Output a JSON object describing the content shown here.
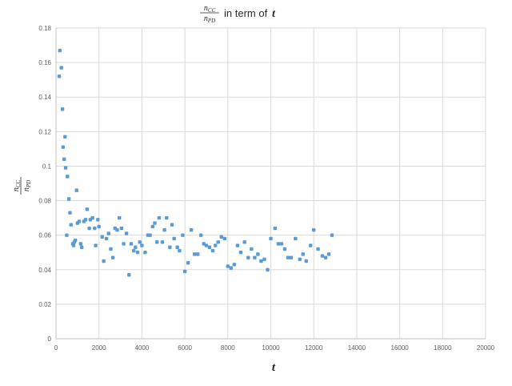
{
  "chart_data": {
    "type": "scatter",
    "title": {
      "frac_num": "n_CC",
      "frac_den": "n_PD",
      "text": "in term of",
      "var": "t"
    },
    "xlabel": "t",
    "ylabel": {
      "frac_num": "n_CC",
      "frac_den": "n_PD"
    },
    "xlim": [
      0,
      20000
    ],
    "ylim": [
      0,
      0.18
    ],
    "xticks": [
      "0",
      "2000",
      "4000",
      "6000",
      "8000",
      "10000",
      "12000",
      "14000",
      "16000",
      "18000",
      "20000"
    ],
    "yticks": [
      "0",
      "0.02",
      "0.04",
      "0.06",
      "0.08",
      "0.1",
      "0.12",
      "0.14",
      "0.16",
      "0.18"
    ],
    "grid": true,
    "marker_color": "#5b9bd5",
    "points": [
      [
        150,
        0.152
      ],
      [
        180,
        0.167
      ],
      [
        250,
        0.157
      ],
      [
        300,
        0.133
      ],
      [
        330,
        0.111
      ],
      [
        380,
        0.104
      ],
      [
        420,
        0.117
      ],
      [
        450,
        0.099
      ],
      [
        500,
        0.06
      ],
      [
        530,
        0.094
      ],
      [
        600,
        0.081
      ],
      [
        650,
        0.073
      ],
      [
        700,
        0.066
      ],
      [
        780,
        0.055
      ],
      [
        820,
        0.054
      ],
      [
        850,
        0.056
      ],
      [
        900,
        0.057
      ],
      [
        960,
        0.086
      ],
      [
        1000,
        0.067
      ],
      [
        1080,
        0.068
      ],
      [
        1150,
        0.055
      ],
      [
        1200,
        0.053
      ],
      [
        1300,
        0.068
      ],
      [
        1380,
        0.069
      ],
      [
        1450,
        0.075
      ],
      [
        1550,
        0.064
      ],
      [
        1600,
        0.069
      ],
      [
        1700,
        0.07
      ],
      [
        1800,
        0.064
      ],
      [
        1850,
        0.054
      ],
      [
        1950,
        0.069
      ],
      [
        2000,
        0.065
      ],
      [
        2150,
        0.059
      ],
      [
        2220,
        0.045
      ],
      [
        2350,
        0.058
      ],
      [
        2450,
        0.061
      ],
      [
        2550,
        0.052
      ],
      [
        2650,
        0.047
      ],
      [
        2750,
        0.064
      ],
      [
        2850,
        0.063
      ],
      [
        2950,
        0.07
      ],
      [
        3050,
        0.064
      ],
      [
        3150,
        0.055
      ],
      [
        3280,
        0.061
      ],
      [
        3400,
        0.037
      ],
      [
        3500,
        0.055
      ],
      [
        3620,
        0.051
      ],
      [
        3700,
        0.053
      ],
      [
        3800,
        0.05
      ],
      [
        3900,
        0.056
      ],
      [
        4000,
        0.054
      ],
      [
        4150,
        0.05
      ],
      [
        4280,
        0.06
      ],
      [
        4380,
        0.06
      ],
      [
        4500,
        0.065
      ],
      [
        4600,
        0.067
      ],
      [
        4700,
        0.056
      ],
      [
        4800,
        0.07
      ],
      [
        4950,
        0.056
      ],
      [
        5050,
        0.063
      ],
      [
        5150,
        0.07
      ],
      [
        5300,
        0.053
      ],
      [
        5400,
        0.066
      ],
      [
        5500,
        0.058
      ],
      [
        5650,
        0.053
      ],
      [
        5750,
        0.051
      ],
      [
        5900,
        0.06
      ],
      [
        6000,
        0.039
      ],
      [
        6150,
        0.044
      ],
      [
        6300,
        0.063
      ],
      [
        6450,
        0.049
      ],
      [
        6600,
        0.049
      ],
      [
        6750,
        0.06
      ],
      [
        6880,
        0.055
      ],
      [
        7000,
        0.054
      ],
      [
        7150,
        0.053
      ],
      [
        7300,
        0.051
      ],
      [
        7420,
        0.054
      ],
      [
        7550,
        0.056
      ],
      [
        7700,
        0.059
      ],
      [
        7850,
        0.058
      ],
      [
        8000,
        0.042
      ],
      [
        8150,
        0.041
      ],
      [
        8300,
        0.043
      ],
      [
        8450,
        0.054
      ],
      [
        8600,
        0.05
      ],
      [
        8780,
        0.056
      ],
      [
        8950,
        0.047
      ],
      [
        9100,
        0.052
      ],
      [
        9250,
        0.047
      ],
      [
        9400,
        0.049
      ],
      [
        9550,
        0.045
      ],
      [
        9700,
        0.046
      ],
      [
        9850,
        0.04
      ],
      [
        10000,
        0.058
      ],
      [
        10200,
        0.064
      ],
      [
        10350,
        0.055
      ],
      [
        10500,
        0.055
      ],
      [
        10650,
        0.052
      ],
      [
        10800,
        0.047
      ],
      [
        10950,
        0.047
      ],
      [
        11150,
        0.058
      ],
      [
        11350,
        0.046
      ],
      [
        11500,
        0.049
      ],
      [
        11650,
        0.045
      ],
      [
        11850,
        0.054
      ],
      [
        12000,
        0.063
      ],
      [
        12200,
        0.052
      ],
      [
        12400,
        0.048
      ],
      [
        12550,
        0.047
      ],
      [
        12700,
        0.049
      ],
      [
        12850,
        0.06
      ]
    ]
  }
}
